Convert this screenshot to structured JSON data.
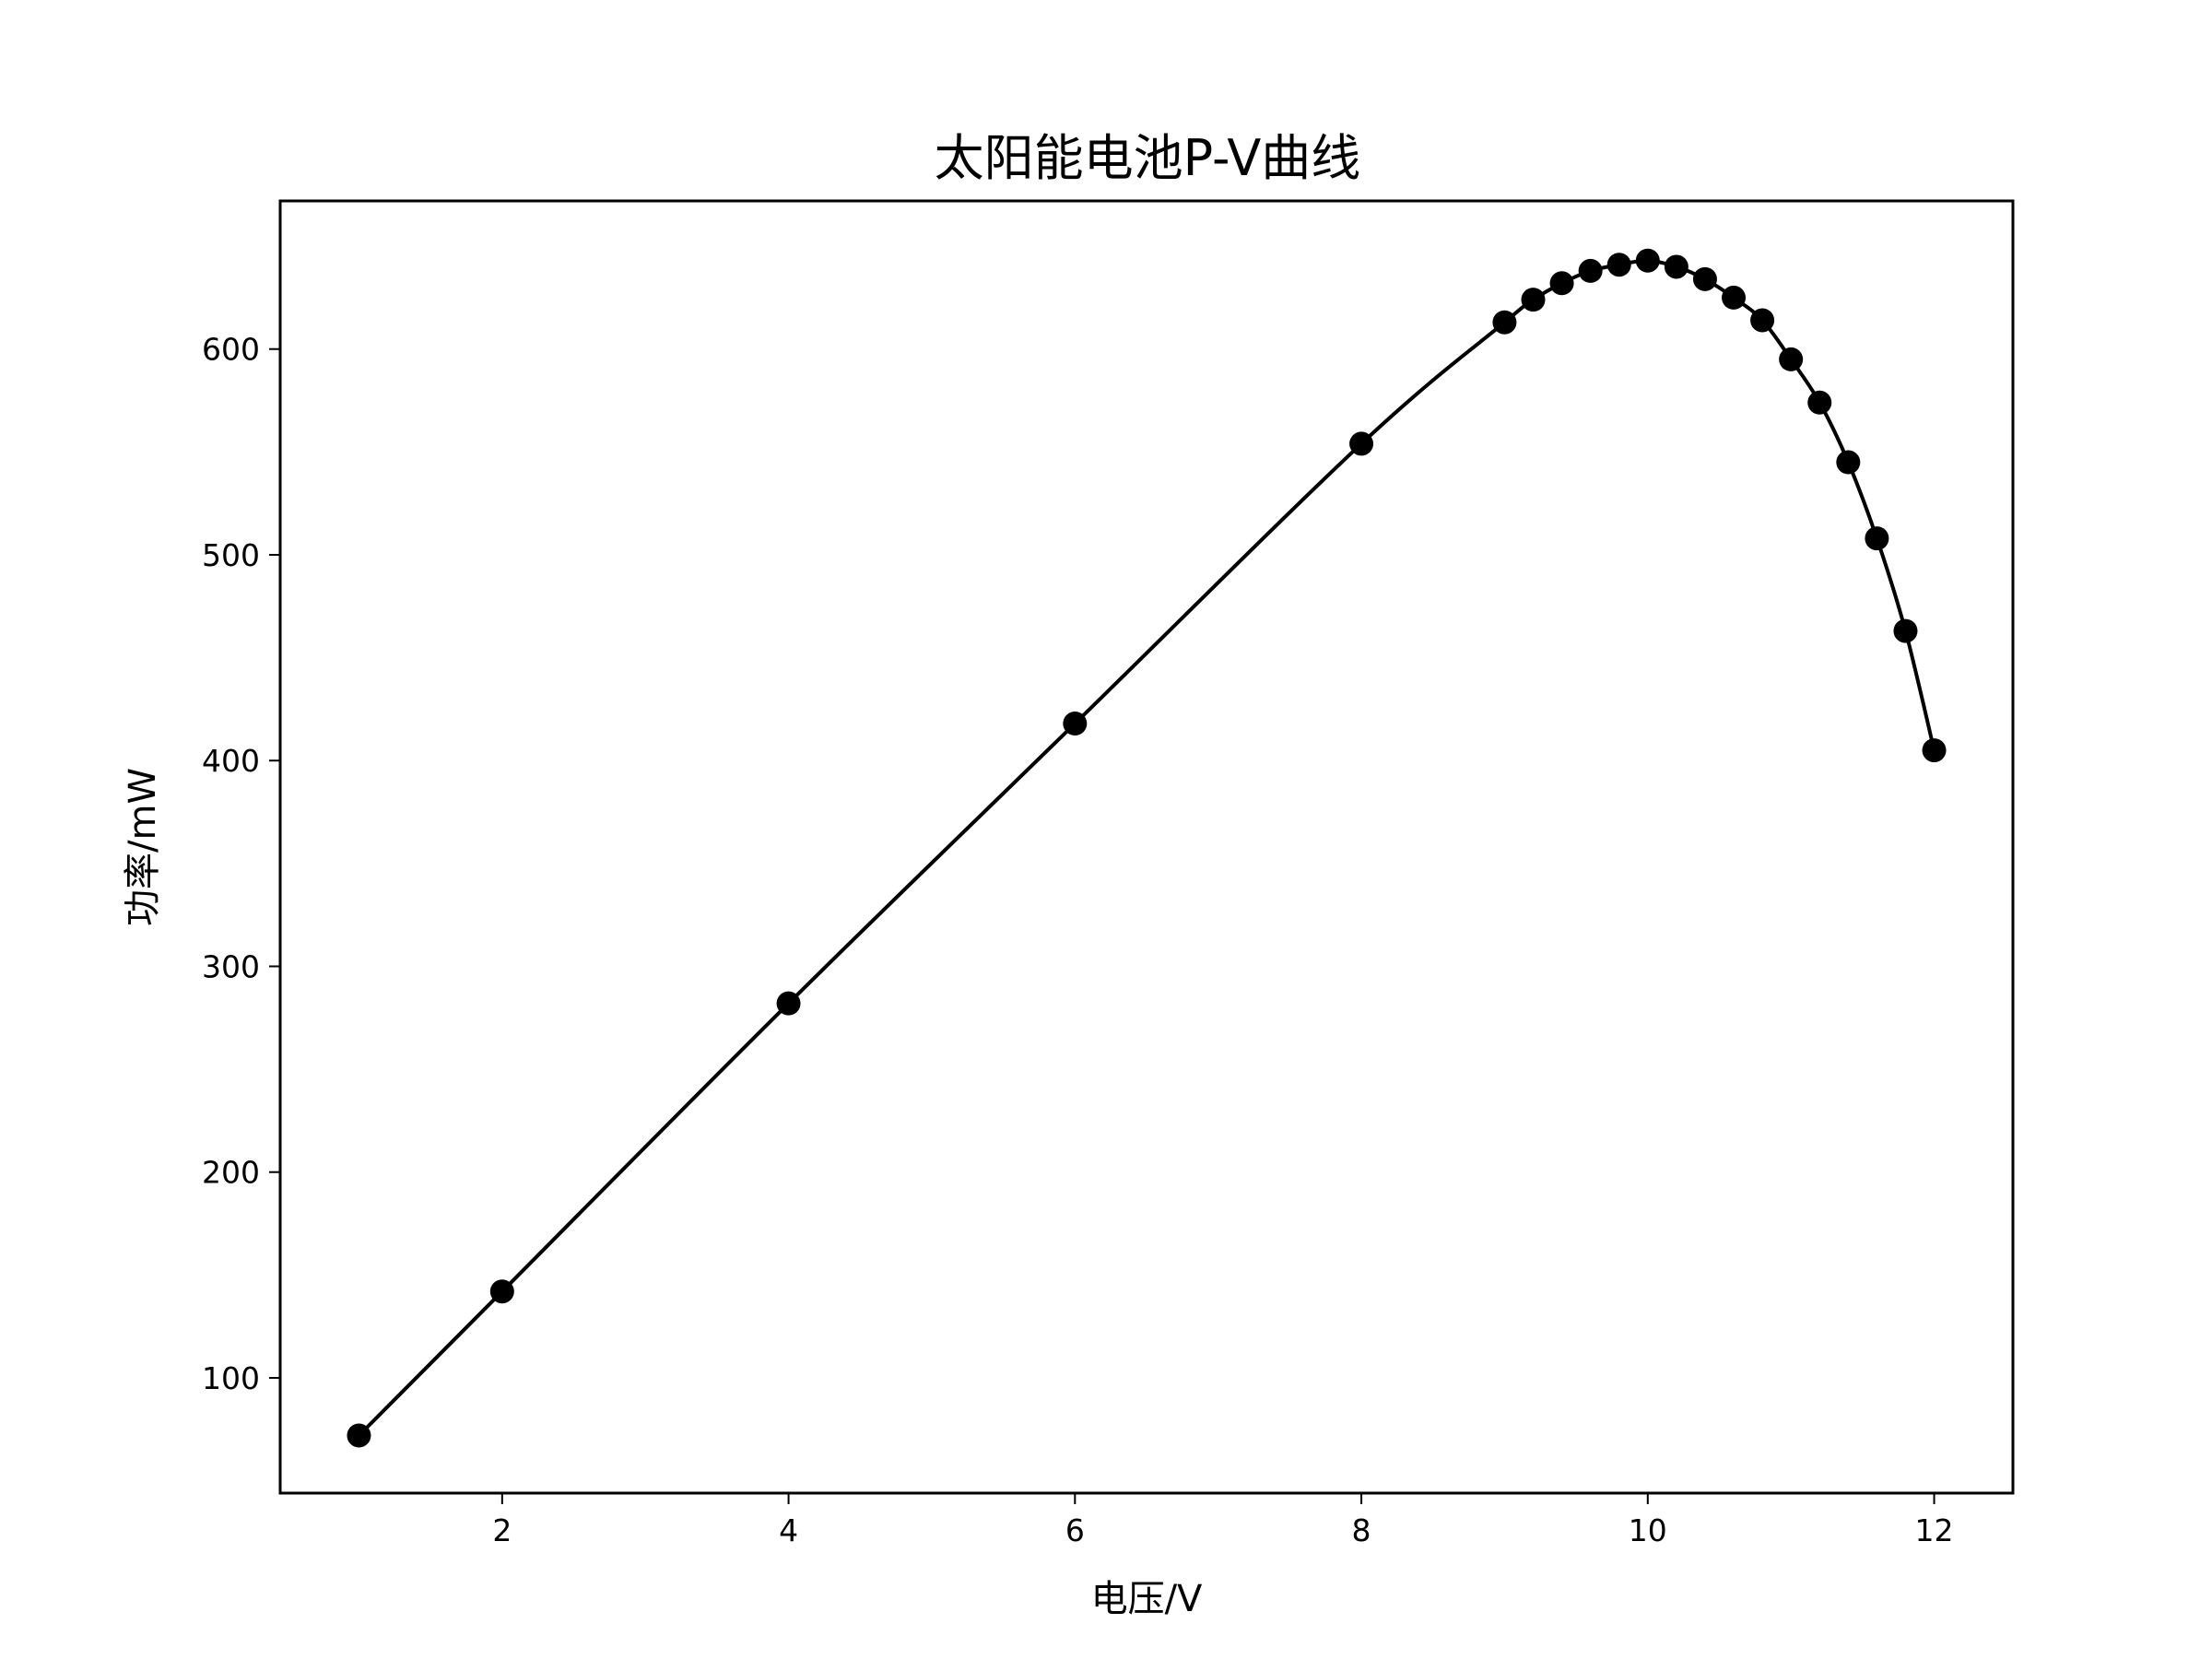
{
  "chart_data": {
    "type": "line",
    "title": "太阳能电池P-V曲线",
    "xlabel": "电压/V",
    "ylabel": "功率/mW",
    "xlim": [
      0.45,
      12.55
    ],
    "ylim": [
      44,
      672
    ],
    "xticks": [
      2,
      4,
      6,
      8,
      10,
      12
    ],
    "yticks": [
      100,
      200,
      300,
      400,
      500,
      600
    ],
    "grid": false,
    "series": [
      {
        "color": "#000000",
        "marker": "circle",
        "smooth": true,
        "points": [
          {
            "x": 1,
            "y": 72
          },
          {
            "x": 2,
            "y": 142
          },
          {
            "x": 4,
            "y": 282
          },
          {
            "x": 6,
            "y": 418
          },
          {
            "x": 8,
            "y": 554
          },
          {
            "x": 9,
            "y": 613
          },
          {
            "x": 9.2,
            "y": 624
          },
          {
            "x": 9.4,
            "y": 632
          },
          {
            "x": 9.6,
            "y": 638
          },
          {
            "x": 9.8,
            "y": 641
          },
          {
            "x": 10,
            "y": 643
          },
          {
            "x": 10.2,
            "y": 640
          },
          {
            "x": 10.4,
            "y": 634
          },
          {
            "x": 10.6,
            "y": 625
          },
          {
            "x": 10.8,
            "y": 614
          },
          {
            "x": 11,
            "y": 595
          },
          {
            "x": 11.2,
            "y": 574
          },
          {
            "x": 11.4,
            "y": 545
          },
          {
            "x": 11.6,
            "y": 508
          },
          {
            "x": 11.8,
            "y": 463
          },
          {
            "x": 12,
            "y": 405
          }
        ]
      }
    ]
  }
}
